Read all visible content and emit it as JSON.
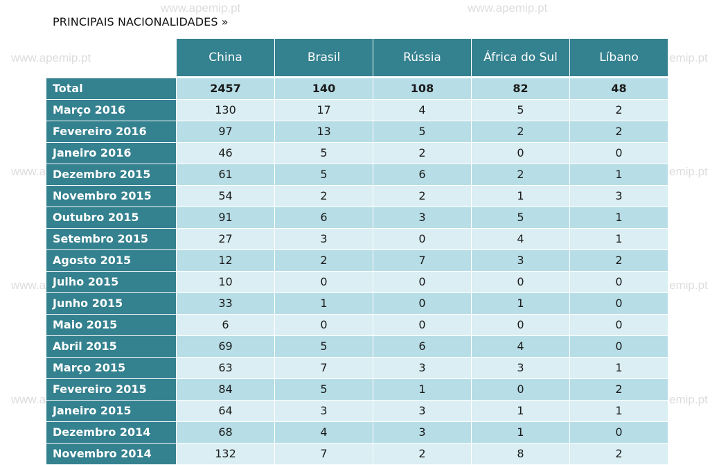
{
  "watermark": "www.apemip.pt",
  "watermark_partial": "emip.pt",
  "title": "PRINCIPAIS NACIONALIDADES »",
  "chart_data": {
    "type": "table",
    "title": "PRINCIPAIS NACIONALIDADES »",
    "columns": [
      "China",
      "Brasil",
      "Rússia",
      "África do Sul",
      "Líbano"
    ],
    "rows": [
      {
        "label": "Total",
        "values": [
          "2457",
          "140",
          "108",
          "82",
          "48"
        ]
      },
      {
        "label": "Março 2016",
        "values": [
          "130",
          "17",
          "4",
          "5",
          "2"
        ]
      },
      {
        "label": "Fevereiro 2016",
        "values": [
          "97",
          "13",
          "5",
          "2",
          "2"
        ]
      },
      {
        "label": "Janeiro 2016",
        "values": [
          "46",
          "5",
          "2",
          "0",
          "0"
        ]
      },
      {
        "label": "Dezembro 2015",
        "values": [
          "61",
          "5",
          "6",
          "2",
          "1"
        ]
      },
      {
        "label": "Novembro 2015",
        "values": [
          "54",
          "2",
          "2",
          "1",
          "3"
        ]
      },
      {
        "label": "Outubro 2015",
        "values": [
          "91",
          "6",
          "3",
          "5",
          "1"
        ]
      },
      {
        "label": "Setembro 2015",
        "values": [
          "27",
          "3",
          "0",
          "4",
          "1"
        ]
      },
      {
        "label": "Agosto 2015",
        "values": [
          "12",
          "2",
          "7",
          "3",
          "2"
        ]
      },
      {
        "label": "Julho 2015",
        "values": [
          "10",
          "0",
          "0",
          "0",
          "0"
        ]
      },
      {
        "label": "Junho 2015",
        "values": [
          "33",
          "1",
          "0",
          "1",
          "0"
        ]
      },
      {
        "label": "Maio 2015",
        "values": [
          "6",
          "0",
          "0",
          "0",
          "0"
        ]
      },
      {
        "label": "Abril 2015",
        "values": [
          "69",
          "5",
          "6",
          "4",
          "0"
        ]
      },
      {
        "label": "Março 2015",
        "values": [
          "63",
          "7",
          "3",
          "3",
          "1"
        ]
      },
      {
        "label": "Fevereiro 2015",
        "values": [
          "84",
          "5",
          "1",
          "0",
          "2"
        ]
      },
      {
        "label": "Janeiro 2015",
        "values": [
          "64",
          "3",
          "3",
          "1",
          "1"
        ]
      },
      {
        "label": "Dezembro 2014",
        "values": [
          "68",
          "4",
          "3",
          "1",
          "0"
        ]
      },
      {
        "label": "Novembro 2014",
        "values": [
          "132",
          "7",
          "2",
          "8",
          "2"
        ]
      }
    ]
  },
  "colors": {
    "header_bg": "#34818f",
    "row_odd": "#b7dde6",
    "row_even": "#daeef3",
    "watermark": "#dddddd"
  }
}
